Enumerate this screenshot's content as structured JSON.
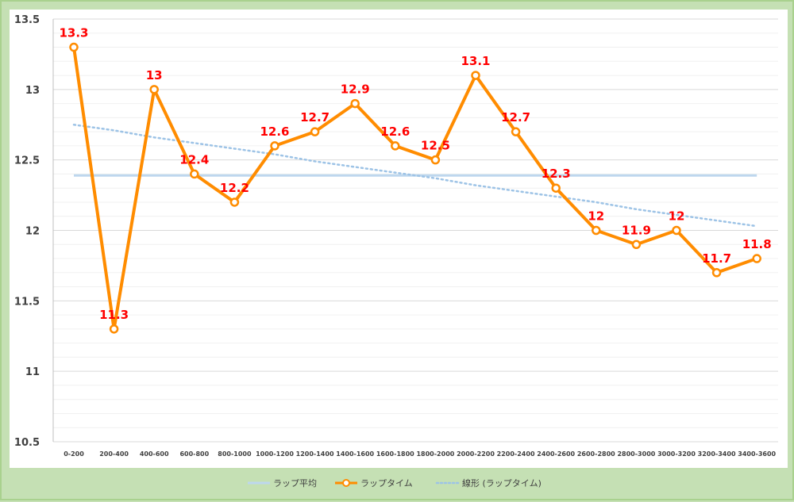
{
  "chart_data": {
    "type": "line",
    "categories": [
      "0-200",
      "200-400",
      "400-600",
      "600-800",
      "800-1000",
      "1000-1200",
      "1200-1400",
      "1400-1600",
      "1600-1800",
      "1800-2000",
      "2000-2200",
      "2200-2400",
      "2400-2600",
      "2600-2800",
      "2800-3000",
      "3000-3200",
      "3200-3400",
      "3400-3600"
    ],
    "series": [
      {
        "name": "ラップ平均",
        "values": [
          12.39,
          12.39,
          12.39,
          12.39,
          12.39,
          12.39,
          12.39,
          12.39,
          12.39,
          12.39,
          12.39,
          12.39,
          12.39,
          12.39,
          12.39,
          12.39,
          12.39,
          12.39
        ],
        "color": "#bdd7ee"
      },
      {
        "name": "ラップタイム",
        "values": [
          13.3,
          11.3,
          13,
          12.4,
          12.2,
          12.6,
          12.7,
          12.9,
          12.6,
          12.5,
          13.1,
          12.7,
          12.3,
          12,
          11.9,
          12,
          11.7,
          11.8
        ],
        "color": "#ff8c00"
      },
      {
        "name": "線形 (ラップタイム)",
        "values": [
          12.75,
          12.71,
          12.66,
          12.62,
          12.58,
          12.54,
          12.49,
          12.45,
          12.41,
          12.37,
          12.32,
          12.28,
          12.24,
          12.2,
          12.15,
          12.11,
          12.07,
          12.03
        ],
        "color": "#9dc3e6"
      }
    ],
    "data_labels": [
      "13.3",
      "11.3",
      "13",
      "12.4",
      "12.2",
      "12.6",
      "12.7",
      "12.9",
      "12.6",
      "12.5",
      "13.1",
      "12.7",
      "12.3",
      "12",
      "11.9",
      "12",
      "11.7",
      "11.8"
    ],
    "ylim": [
      10.5,
      13.5
    ],
    "yticks": [
      "10.5",
      "11",
      "11.5",
      "12",
      "12.5",
      "13",
      "13.5"
    ],
    "title": "",
    "xlabel": "",
    "ylabel": "",
    "grid": true,
    "legend_position": "bottom",
    "label_color": "#ff0000",
    "plot_background": "#ffffff",
    "frame_background": "#c5e0b4"
  }
}
